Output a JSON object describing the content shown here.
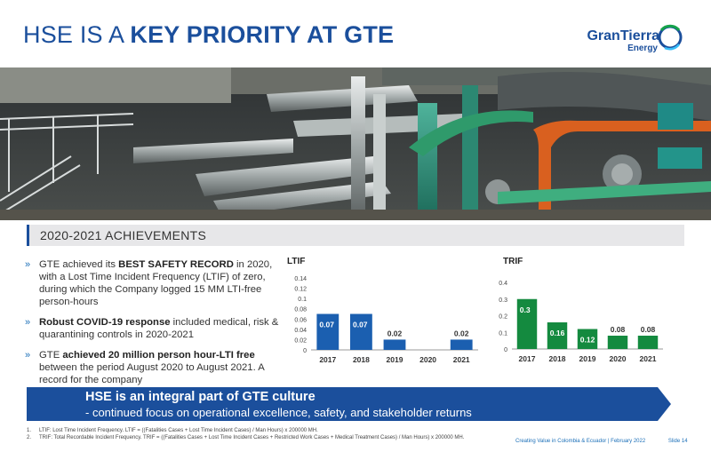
{
  "header": {
    "title_prefix": "HSE IS A ",
    "title_bold": "KEY PRIORITY AT GTE",
    "logo_line1": "GranTierra",
    "logo_line2": "Energy"
  },
  "section": {
    "label": "2020-2021 ACHIEVEMENTS"
  },
  "bullets": [
    {
      "pre": "GTE achieved its ",
      "bold": "BEST SAFETY RECORD",
      "post": " in 2020, with a Lost Time Incident Frequency (LTIF) of zero, during which the Company logged 15 MM LTI-free person-hours"
    },
    {
      "pre": "",
      "bold": "Robust COVID-19 response",
      "post": " included medical, risk & quarantining controls in 2020-2021"
    },
    {
      "pre": "GTE ",
      "bold": "achieved 20 million person hour-LTI free",
      "post": " between the period August 2020 to August 2021. A record for the company"
    }
  ],
  "bullet_mark": "»",
  "chart_data": [
    {
      "type": "bar",
      "title": "LTIF",
      "categories": [
        "2017",
        "2018",
        "2019",
        "2020",
        "2021"
      ],
      "values": [
        0.07,
        0.07,
        0.02,
        0,
        0.02
      ],
      "data_labels": [
        "0.07",
        "0.07",
        "0.02",
        "",
        "0.02"
      ],
      "ylim": [
        0,
        0.14
      ],
      "yticks": [
        "0",
        "0.02",
        "0.04",
        "0.06",
        "0.08",
        "0.1",
        "0.12",
        "0.14"
      ],
      "color": "#1b5fb0",
      "grid": false
    },
    {
      "type": "bar",
      "title": "TRIF",
      "categories": [
        "2017",
        "2018",
        "2019",
        "2020",
        "2021"
      ],
      "values": [
        0.3,
        0.16,
        0.12,
        0.08,
        0.08
      ],
      "data_labels": [
        "0.3",
        "0.16",
        "0.12",
        "0.08",
        "0.08"
      ],
      "ylim": [
        0,
        0.4
      ],
      "yticks": [
        "0",
        "0.1",
        "0.2",
        "0.3",
        "0.4"
      ],
      "color": "#148a3f",
      "grid": false
    }
  ],
  "banner": {
    "line1": "HSE is an integral part of GTE culture",
    "line2": "- continued focus on operational excellence, safety, and stakeholder returns",
    "color": "#1b4f9c"
  },
  "footnotes": [
    {
      "n": "1.",
      "text": "LTIF: Lost Time Incident Frequency. LTIF = ((Fatalities Cases + Lost Time Incident Cases) / Man Hours) x 200000 MH."
    },
    {
      "n": "2.",
      "text": "TRIF: Total Recordable Incident Frequency. TRIF = ((Fatalities Cases + Lost Time Incident Cases + Restricted Work Cases + Medical Treatment Cases) / Man Hours) x 200000 MH."
    }
  ],
  "footer": {
    "tagline": "Creating Value in Colombia & Ecuador  |  February 2022",
    "slide": "Slide 14"
  }
}
